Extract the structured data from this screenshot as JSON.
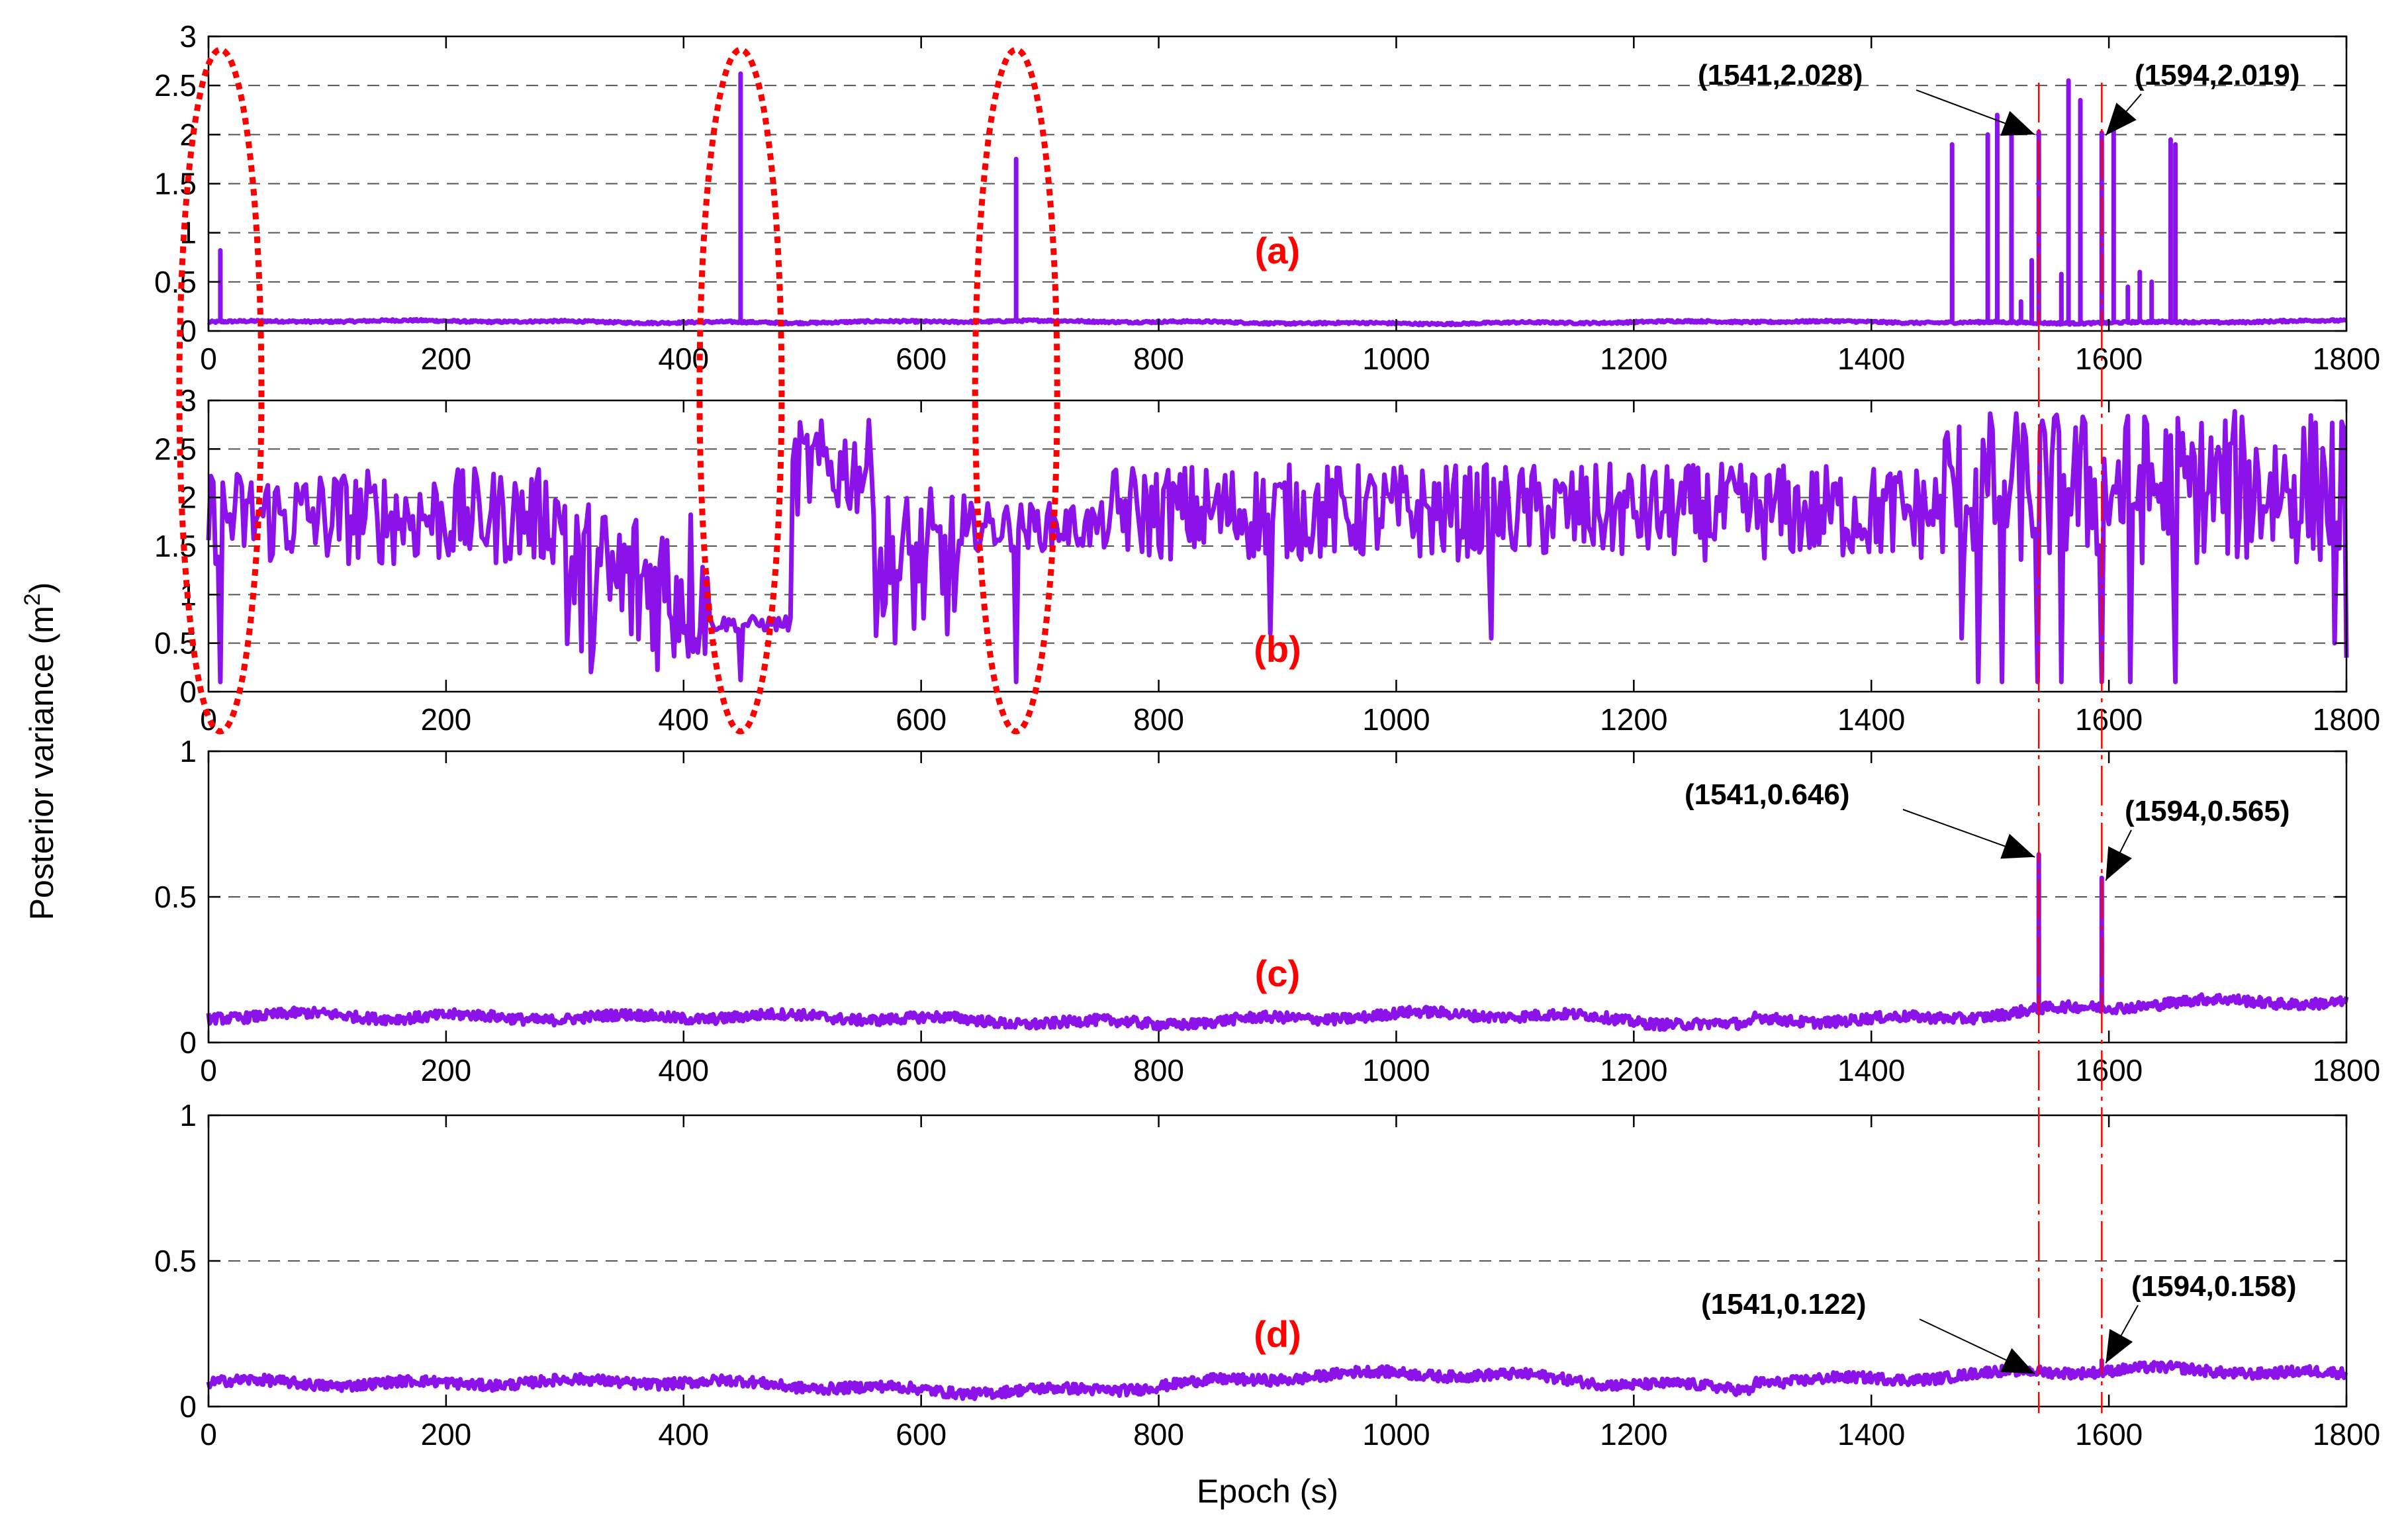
{
  "chart_data": {
    "type": "line",
    "xlabel": "Epoch (s)",
    "ylabel": "Posterior variance (m",
    "ylabel_superscript": "2",
    "ylabel_close": ")",
    "x_range": [
      0,
      1800
    ],
    "x_ticks": [
      0,
      200,
      400,
      600,
      800,
      1000,
      1200,
      1400,
      1600,
      1800
    ],
    "colors": {
      "series": "#8b12e8",
      "highlight": "#ff0000",
      "annotation_text": "#000000",
      "grid": "#555555"
    },
    "vertical_markers": [
      1541,
      1594
    ],
    "highlight_ellipses_x": [
      10,
      448,
      680
    ],
    "panels": [
      {
        "label": "(a)",
        "ylim": [
          0,
          3
        ],
        "yticks": [
          0,
          0.5,
          1,
          1.5,
          2,
          2.5,
          3
        ],
        "ytick_labels": [
          "0",
          "0.5",
          "1",
          "1.5",
          "2",
          "2.5",
          "3"
        ],
        "baseline": {
          "mean": 0.09,
          "amplitude": 0.02
        },
        "spikes": [
          {
            "x": 10,
            "y": 0.82
          },
          {
            "x": 448,
            "y": 2.62
          },
          {
            "x": 680,
            "y": 1.75
          },
          {
            "x": 1468,
            "y": 1.9
          },
          {
            "x": 1498,
            "y": 2.0
          },
          {
            "x": 1506,
            "y": 2.2
          },
          {
            "x": 1518,
            "y": 2.1
          },
          {
            "x": 1526,
            "y": 0.3
          },
          {
            "x": 1535,
            "y": 0.72
          },
          {
            "x": 1541,
            "y": 2.028
          },
          {
            "x": 1560,
            "y": 0.58
          },
          {
            "x": 1566,
            "y": 2.55
          },
          {
            "x": 1576,
            "y": 2.35
          },
          {
            "x": 1594,
            "y": 2.019
          },
          {
            "x": 1604,
            "y": 2.15
          },
          {
            "x": 1616,
            "y": 0.45
          },
          {
            "x": 1626,
            "y": 0.6
          },
          {
            "x": 1636,
            "y": 0.5
          },
          {
            "x": 1652,
            "y": 1.95
          },
          {
            "x": 1656,
            "y": 1.9
          }
        ],
        "annotations": [
          {
            "text": "(1541,2.028)",
            "x": 1541,
            "y": 2.028
          },
          {
            "text": "(1594,2.019)",
            "x": 1594,
            "y": 2.019
          }
        ]
      },
      {
        "label": "(b)",
        "ylim": [
          0,
          3
        ],
        "yticks": [
          0,
          0.5,
          1,
          1.5,
          2,
          2.5,
          3
        ],
        "ytick_labels": [
          "0",
          "0.5",
          "1",
          "1.5",
          "2",
          "2.5",
          "3"
        ],
        "segments": [
          {
            "from": 0,
            "to": 300,
            "mean": 1.8,
            "spread": 0.5
          },
          {
            "from": 300,
            "to": 420,
            "mean": 1.1,
            "spread": 0.9
          },
          {
            "from": 420,
            "to": 490,
            "mean": 0.7,
            "spread": 0.08
          },
          {
            "from": 490,
            "to": 560,
            "mean": 2.3,
            "spread": 0.5
          },
          {
            "from": 560,
            "to": 640,
            "mean": 1.3,
            "spread": 0.8
          },
          {
            "from": 640,
            "to": 760,
            "mean": 1.7,
            "spread": 0.25
          },
          {
            "from": 760,
            "to": 1460,
            "mean": 1.85,
            "spread": 0.5
          },
          {
            "from": 1460,
            "to": 1800,
            "mean": 2.1,
            "spread": 0.8
          }
        ],
        "dips": [
          {
            "x": 10,
            "y": 0.1
          },
          {
            "x": 448,
            "y": 0.12
          },
          {
            "x": 680,
            "y": 0.1
          },
          {
            "x": 895,
            "y": 0.6
          },
          {
            "x": 1080,
            "y": 0.55
          },
          {
            "x": 1476,
            "y": 0.55
          },
          {
            "x": 1490,
            "y": 0.1
          },
          {
            "x": 1510,
            "y": 0.1
          },
          {
            "x": 1541,
            "y": 0.1
          },
          {
            "x": 1560,
            "y": 0.1
          },
          {
            "x": 1594,
            "y": 0.1
          },
          {
            "x": 1618,
            "y": 0.1
          },
          {
            "x": 1656,
            "y": 0.1
          },
          {
            "x": 1790,
            "y": 0.5
          },
          {
            "x": 1800,
            "y": 0.35
          }
        ]
      },
      {
        "label": "(c)",
        "ylim": [
          0,
          1
        ],
        "yticks": [
          0,
          0.5,
          1
        ],
        "ytick_labels": [
          "0",
          "0.5",
          "1"
        ],
        "baseline": {
          "mean": 0.08,
          "amplitude": 0.03
        },
        "spikes": [
          {
            "x": 1541,
            "y": 0.646
          },
          {
            "x": 1594,
            "y": 0.565
          }
        ],
        "annotations": [
          {
            "text": "(1541,0.646)",
            "x": 1541,
            "y": 0.646
          },
          {
            "text": "(1594,0.565)",
            "x": 1594,
            "y": 0.565
          }
        ]
      },
      {
        "label": "(d)",
        "ylim": [
          0,
          1
        ],
        "yticks": [
          0,
          0.5,
          1
        ],
        "ytick_labels": [
          "0",
          "0.5",
          "1"
        ],
        "baseline": {
          "mean": 0.08,
          "amplitude": 0.03
        },
        "spikes": [
          {
            "x": 1541,
            "y": 0.122
          },
          {
            "x": 1594,
            "y": 0.158
          }
        ],
        "annotations": [
          {
            "text": "(1541,0.122)",
            "x": 1541,
            "y": 0.122
          },
          {
            "text": "(1594,0.158)",
            "x": 1594,
            "y": 0.158
          }
        ]
      }
    ]
  }
}
